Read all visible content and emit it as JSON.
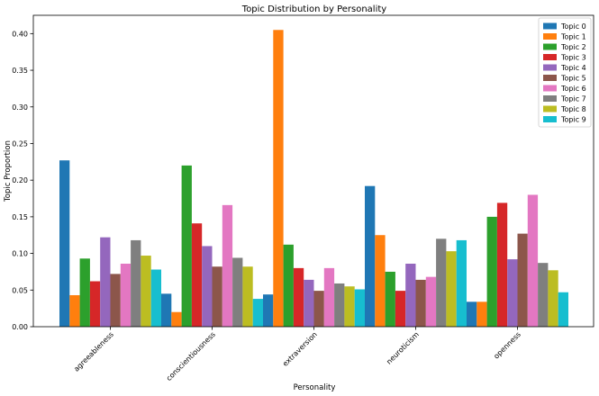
{
  "chart_data": {
    "type": "bar",
    "title": "Topic Distribution by Personality",
    "xlabel": "Personality",
    "ylabel": "Topic Proportion",
    "ylim": [
      0,
      0.425
    ],
    "yticks": [
      "0.00",
      "0.05",
      "0.10",
      "0.15",
      "0.20",
      "0.25",
      "0.30",
      "0.35",
      "0.40"
    ],
    "categories": [
      "agreeableness",
      "conscientiousness",
      "extraversion",
      "neuroticism",
      "openness"
    ],
    "legend_position": "top-right",
    "series": [
      {
        "name": "Topic 0",
        "color": "#1f77b4",
        "values": [
          0.227,
          0.045,
          0.044,
          0.192,
          0.034
        ]
      },
      {
        "name": "Topic 1",
        "color": "#ff7f0e",
        "values": [
          0.043,
          0.02,
          0.405,
          0.125,
          0.034
        ]
      },
      {
        "name": "Topic 2",
        "color": "#2ca02c",
        "values": [
          0.093,
          0.22,
          0.112,
          0.075,
          0.15
        ]
      },
      {
        "name": "Topic 3",
        "color": "#d62728",
        "values": [
          0.062,
          0.141,
          0.08,
          0.049,
          0.169
        ]
      },
      {
        "name": "Topic 4",
        "color": "#9467bd",
        "values": [
          0.122,
          0.11,
          0.064,
          0.086,
          0.092
        ]
      },
      {
        "name": "Topic 5",
        "color": "#8c564b",
        "values": [
          0.072,
          0.082,
          0.049,
          0.064,
          0.127
        ]
      },
      {
        "name": "Topic 6",
        "color": "#e377c2",
        "values": [
          0.086,
          0.166,
          0.08,
          0.068,
          0.18
        ]
      },
      {
        "name": "Topic 7",
        "color": "#7f7f7f",
        "values": [
          0.118,
          0.094,
          0.059,
          0.12,
          0.087
        ]
      },
      {
        "name": "Topic 8",
        "color": "#bcbd22",
        "values": [
          0.097,
          0.082,
          0.055,
          0.103,
          0.077
        ]
      },
      {
        "name": "Topic 9",
        "color": "#17becf",
        "values": [
          0.078,
          0.038,
          0.051,
          0.118,
          0.047
        ]
      }
    ]
  }
}
